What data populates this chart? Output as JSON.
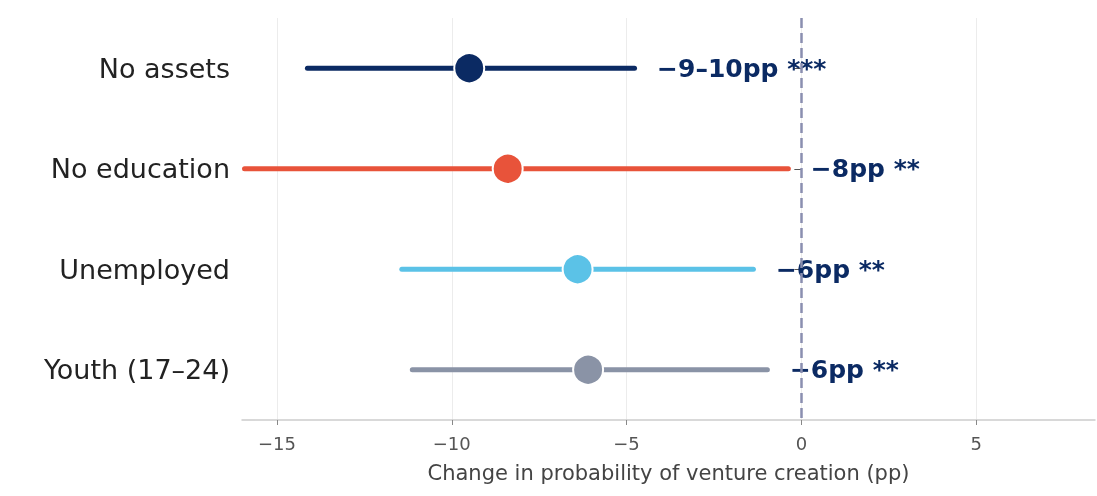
{
  "chart_data": {
    "type": "bar",
    "orientation": "horizontal",
    "xlabel": "Change in probability of venture creation (pp)",
    "categories": [
      "No assets",
      "No education",
      "Unemployed",
      "Youth (17–24)"
    ],
    "series": [
      {
        "base": [
          -14.2,
          -16.0,
          -11.5,
          -11.2
        ],
        "values": [
          9.5,
          15.7,
          10.2,
          10.3
        ],
        "colors": [
          "#0b2a63",
          "#e8533a",
          "#5bc2e7",
          "#8a93a6"
        ]
      },
      {
        "type": "scatter",
        "values": [
          -9.5,
          -8.4,
          -6.4,
          -6.1
        ],
        "colors": [
          "#0b2a63",
          "#e8533a",
          "#5bc2e7",
          "#8a93a6"
        ]
      }
    ],
    "annotations": [
      "−9–10pp ***",
      "−8pp **",
      "−6pp **",
      "−6pp **"
    ],
    "xlim": [
      -16,
      8.4
    ],
    "xticks": [
      {
        "value": -15,
        "label": "−15"
      },
      {
        "value": -10,
        "label": "−10"
      },
      {
        "value": -5,
        "label": "−5"
      },
      0,
      5
    ],
    "ref_lines": [
      {
        "axis": "x",
        "value": 0,
        "color": "#8a8fb0",
        "line_style": "dashed"
      }
    ],
    "grid": "x",
    "marker": "circle"
  }
}
